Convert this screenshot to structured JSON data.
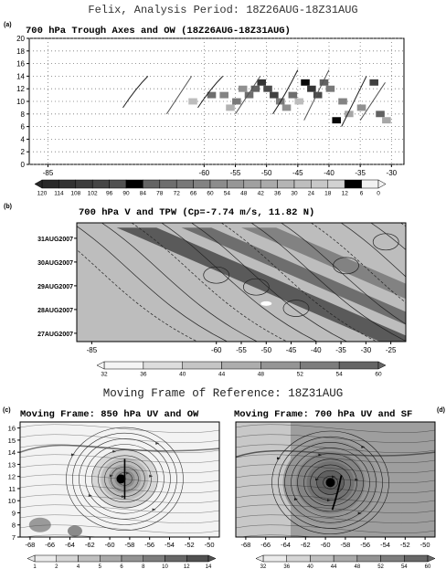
{
  "page_title": "Felix, Analysis Period: 18Z26AUG-18Z31AUG",
  "moving_frame_title": "Moving Frame of Reference: 18Z31AUG",
  "panels": {
    "a": {
      "label": "(a)",
      "title": "700 hPa Trough Axes and OW (18Z26AUG-18Z31AUG)"
    },
    "b": {
      "label": "(b)",
      "title": "700 hPa V and TPW (Cp=-7.74 m/s, 11.82 N)"
    },
    "c": {
      "label": "(c)",
      "title": "Moving Frame: 850 hPa UV and OW"
    },
    "d": {
      "label": "(d)",
      "title": "Moving Frame: 700 hPa UV and SF"
    }
  },
  "chart_data": [
    {
      "id": "a",
      "type": "heatmap",
      "title": "700 hPa Trough Axes and OW (18Z26AUG-18Z31AUG)",
      "xlim": [
        -88,
        -28
      ],
      "ylim": [
        0,
        20
      ],
      "xticks": [
        -85,
        -60,
        -55,
        -50,
        -45,
        -40,
        -35,
        -30
      ],
      "yticks": [
        0,
        2,
        4,
        6,
        8,
        10,
        12,
        14,
        16,
        18,
        20
      ],
      "grid": true,
      "colorbar": {
        "labels": [
          "120",
          "114",
          "108",
          "102",
          "96",
          "90",
          "84",
          "78",
          "72",
          "66",
          "60",
          "54",
          "48",
          "42",
          "36",
          "30",
          "24",
          "18",
          "12",
          "6",
          "0"
        ]
      },
      "cells": [
        {
          "x": -59,
          "y": 11,
          "v": 66
        },
        {
          "x": -57,
          "y": 11,
          "v": 54
        },
        {
          "x": -55,
          "y": 10,
          "v": 60
        },
        {
          "x": -54,
          "y": 12,
          "v": 48
        },
        {
          "x": -53,
          "y": 11,
          "v": 66
        },
        {
          "x": -52,
          "y": 12,
          "v": 72
        },
        {
          "x": -51,
          "y": 13,
          "v": 96
        },
        {
          "x": -50,
          "y": 12,
          "v": 84
        },
        {
          "x": -49,
          "y": 11,
          "v": 90
        },
        {
          "x": -48,
          "y": 10,
          "v": 60
        },
        {
          "x": -47,
          "y": 9,
          "v": 48
        },
        {
          "x": -46,
          "y": 11,
          "v": 66
        },
        {
          "x": -44,
          "y": 13,
          "v": 120
        },
        {
          "x": -43,
          "y": 12,
          "v": 96
        },
        {
          "x": -42,
          "y": 11,
          "v": 84
        },
        {
          "x": -41,
          "y": 13,
          "v": 72
        },
        {
          "x": -40,
          "y": 12,
          "v": 60
        },
        {
          "x": -39,
          "y": 7,
          "v": 120
        },
        {
          "x": -38,
          "y": 10,
          "v": 54
        },
        {
          "x": -37,
          "y": 8,
          "v": 36
        },
        {
          "x": -35,
          "y": 9,
          "v": 48
        },
        {
          "x": -33,
          "y": 13,
          "v": 90
        },
        {
          "x": -32,
          "y": 8,
          "v": 72
        },
        {
          "x": -31,
          "y": 7,
          "v": 36
        },
        {
          "x": -62,
          "y": 10,
          "v": 24
        },
        {
          "x": -56,
          "y": 9,
          "v": 30
        },
        {
          "x": -45,
          "y": 10,
          "v": 24
        }
      ],
      "trough_axes": [
        {
          "points": [
            [
              -73,
              9
            ],
            [
              -71,
              12
            ],
            [
              -69,
              14
            ]
          ]
        },
        {
          "points": [
            [
              -66,
              8
            ],
            [
              -64,
              11
            ],
            [
              -62,
              14
            ]
          ]
        },
        {
          "points": [
            [
              -61,
              9
            ],
            [
              -59,
              12
            ],
            [
              -57,
              14
            ]
          ]
        },
        {
          "points": [
            [
              -55,
              8
            ],
            [
              -53,
              11
            ],
            [
              -51,
              14
            ]
          ]
        },
        {
          "points": [
            [
              -49,
              8
            ],
            [
              -47,
              11
            ],
            [
              -45,
              15
            ]
          ]
        },
        {
          "points": [
            [
              -44,
              7
            ],
            [
              -42,
              11
            ],
            [
              -40,
              15
            ]
          ]
        },
        {
          "points": [
            [
              -38,
              6
            ],
            [
              -36,
              10
            ],
            [
              -34,
              14
            ]
          ]
        },
        {
          "points": [
            [
              -35,
              7
            ],
            [
              -33,
              10
            ],
            [
              -31,
              13
            ]
          ]
        }
      ]
    },
    {
      "id": "b",
      "type": "heatmap",
      "title": "700 hPa V and TPW (Cp=-7.74 m/s, 11.82 N)",
      "xlim": [
        -88,
        -22
      ],
      "xticks": [
        -85,
        -60,
        -55,
        -50,
        -45,
        -40,
        -35,
        -30,
        -25
      ],
      "yticks": [
        "27AUG2007",
        "28AUG2007",
        "29AUG2007",
        "30AUG2007",
        "31AUG2007"
      ],
      "colorbar": {
        "labels": [
          "32",
          "36",
          "40",
          "44",
          "48",
          "52",
          "54",
          "60"
        ]
      },
      "bands": [
        {
          "t_start": 4.8,
          "x_start": -80,
          "slope": 11,
          "width": 8,
          "tpw": 54
        },
        {
          "t_start": 4.8,
          "x_start": -67,
          "slope": 11,
          "width": 6,
          "tpw": 50
        },
        {
          "t_start": 4.8,
          "x_start": -55,
          "slope": 11,
          "width": 7,
          "tpw": 46
        }
      ]
    },
    {
      "id": "c",
      "type": "scatter",
      "title": "Moving Frame: 850 hPa UV and OW",
      "xlim": [
        -69,
        -49
      ],
      "ylim": [
        7,
        16.5
      ],
      "xticks": [
        -68,
        -66,
        -64,
        -62,
        -60,
        -58,
        -56,
        -54,
        -52,
        -50
      ],
      "yticks": [
        7,
        8,
        9,
        10,
        11,
        12,
        13,
        14,
        15,
        16
      ],
      "center": {
        "x": -58.5,
        "y": 11.8
      },
      "colorbar": {
        "labels": [
          "1",
          "2",
          "4",
          "5",
          "6",
          "8",
          "10",
          "12",
          "14"
        ]
      }
    },
    {
      "id": "d",
      "type": "scatter",
      "title": "Moving Frame: 700 hPa UV and SF",
      "xlim": [
        -69,
        -49
      ],
      "ylim": [
        7,
        16.5
      ],
      "xticks": [
        -68,
        -66,
        -64,
        -62,
        -60,
        -58,
        -56,
        -54,
        -52,
        -50
      ],
      "yticks": [
        7,
        8,
        9,
        10,
        11,
        12,
        13,
        14,
        15,
        16
      ],
      "center": {
        "x": -59.5,
        "y": 11.5
      },
      "colorbar": {
        "labels": [
          "32",
          "36",
          "40",
          "44",
          "48",
          "52",
          "54",
          "60"
        ]
      }
    }
  ]
}
